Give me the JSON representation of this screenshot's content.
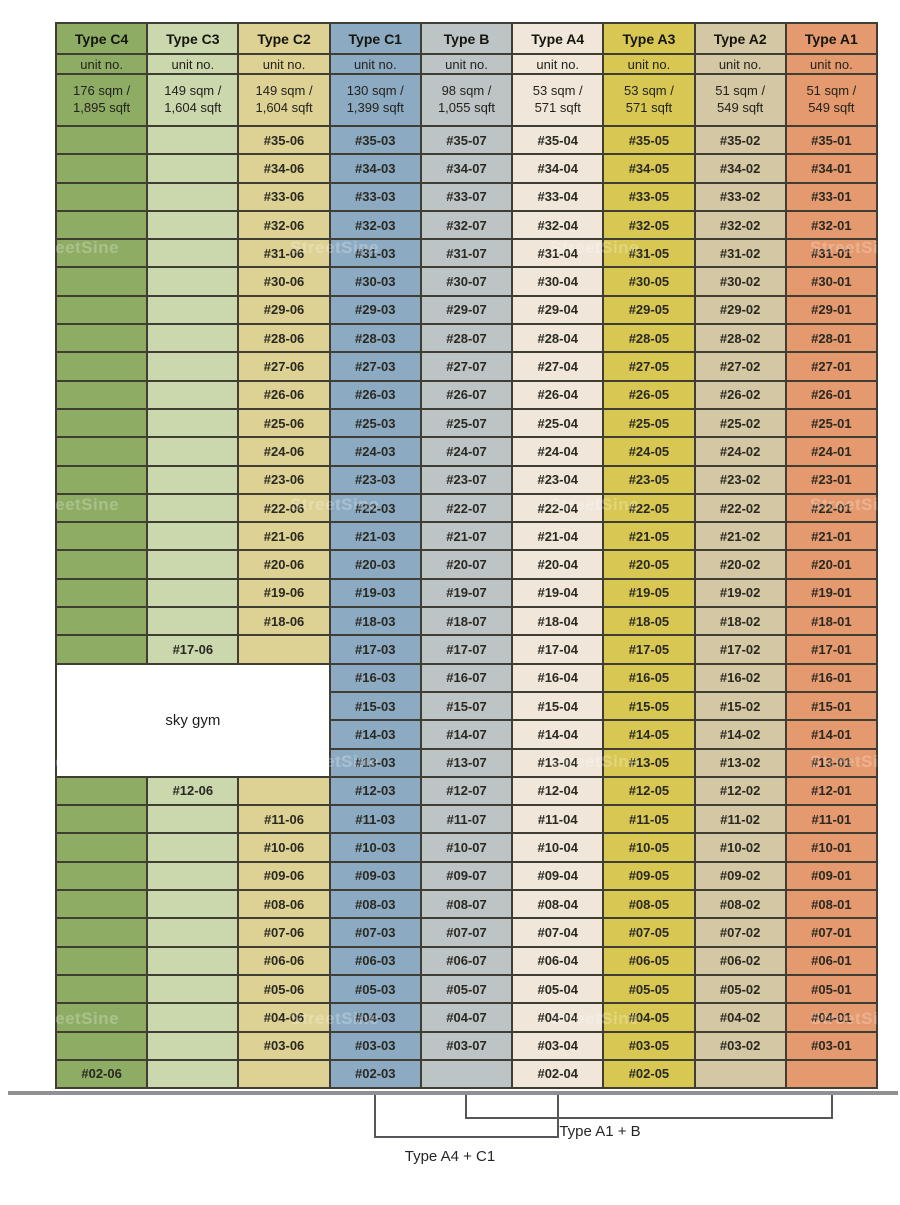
{
  "watermark": {
    "text": "StreetSine"
  },
  "sky_gym": {
    "label": "sky gym"
  },
  "annotations": [
    {
      "label": "Type A4 + C1"
    },
    {
      "label": "Type A1 + B"
    }
  ],
  "columns": [
    {
      "label": "Type C4",
      "unit_label": "unit no.",
      "area": "176 sqm /\n1,895 sqft",
      "color": "#8fac65"
    },
    {
      "label": "Type C3",
      "unit_label": "unit no.",
      "area": "149 sqm /\n1,604 sqft",
      "color": "#cbd7ac"
    },
    {
      "label": "Type C2",
      "unit_label": "unit no.",
      "area": "149 sqm /\n1,604 sqft",
      "color": "#ddd293"
    },
    {
      "label": "Type C1",
      "unit_label": "unit no.",
      "area": "130 sqm /\n1,399 sqft",
      "color": "#8cabc3"
    },
    {
      "label": "Type B",
      "unit_label": "unit no.",
      "area": "98 sqm /\n1,055 sqft",
      "color": "#bdc4c6"
    },
    {
      "label": "Type A4",
      "unit_label": "unit no.",
      "area": "53 sqm /\n571 sqft",
      "color": "#f0e7da"
    },
    {
      "label": "Type A3",
      "unit_label": "unit no.",
      "area": "53 sqm /\n571 sqft",
      "color": "#d8c752"
    },
    {
      "label": "Type A2",
      "unit_label": "unit no.",
      "area": "51 sqm /\n549 sqft",
      "color": "#d4c7a3"
    },
    {
      "label": "Type A1",
      "unit_label": "unit no.",
      "area": "51 sqm /\n549 sqft",
      "color": "#e5996e"
    }
  ],
  "rows": [
    {
      "floor": "35",
      "cells": [
        "",
        "",
        "#35-06",
        "#35-03",
        "#35-07",
        "#35-04",
        "#35-05",
        "#35-02",
        "#35-01"
      ]
    },
    {
      "floor": "34",
      "cells": [
        "",
        "",
        "#34-06",
        "#34-03",
        "#34-07",
        "#34-04",
        "#34-05",
        "#34-02",
        "#34-01"
      ]
    },
    {
      "floor": "33",
      "cells": [
        "",
        "",
        "#33-06",
        "#33-03",
        "#33-07",
        "#33-04",
        "#33-05",
        "#33-02",
        "#33-01"
      ]
    },
    {
      "floor": "32",
      "cells": [
        "",
        "",
        "#32-06",
        "#32-03",
        "#32-07",
        "#32-04",
        "#32-05",
        "#32-02",
        "#32-01"
      ]
    },
    {
      "floor": "31",
      "cells": [
        "",
        "",
        "#31-06",
        "#31-03",
        "#31-07",
        "#31-04",
        "#31-05",
        "#31-02",
        "#31-01"
      ]
    },
    {
      "floor": "30",
      "cells": [
        "",
        "",
        "#30-06",
        "#30-03",
        "#30-07",
        "#30-04",
        "#30-05",
        "#30-02",
        "#30-01"
      ]
    },
    {
      "floor": "29",
      "cells": [
        "",
        "",
        "#29-06",
        "#29-03",
        "#29-07",
        "#29-04",
        "#29-05",
        "#29-02",
        "#29-01"
      ]
    },
    {
      "floor": "28",
      "cells": [
        "",
        "",
        "#28-06",
        "#28-03",
        "#28-07",
        "#28-04",
        "#28-05",
        "#28-02",
        "#28-01"
      ]
    },
    {
      "floor": "27",
      "cells": [
        "",
        "",
        "#27-06",
        "#27-03",
        "#27-07",
        "#27-04",
        "#27-05",
        "#27-02",
        "#27-01"
      ]
    },
    {
      "floor": "26",
      "cells": [
        "",
        "",
        "#26-06",
        "#26-03",
        "#26-07",
        "#26-04",
        "#26-05",
        "#26-02",
        "#26-01"
      ]
    },
    {
      "floor": "25",
      "cells": [
        "",
        "",
        "#25-06",
        "#25-03",
        "#25-07",
        "#25-04",
        "#25-05",
        "#25-02",
        "#25-01"
      ]
    },
    {
      "floor": "24",
      "cells": [
        "",
        "",
        "#24-06",
        "#24-03",
        "#24-07",
        "#24-04",
        "#24-05",
        "#24-02",
        "#24-01"
      ]
    },
    {
      "floor": "23",
      "cells": [
        "",
        "",
        "#23-06",
        "#23-03",
        "#23-07",
        "#23-04",
        "#23-05",
        "#23-02",
        "#23-01"
      ]
    },
    {
      "floor": "22",
      "cells": [
        "",
        "",
        "#22-06",
        "#22-03",
        "#22-07",
        "#22-04",
        "#22-05",
        "#22-02",
        "#22-01"
      ]
    },
    {
      "floor": "21",
      "cells": [
        "",
        "",
        "#21-06",
        "#21-03",
        "#21-07",
        "#21-04",
        "#21-05",
        "#21-02",
        "#21-01"
      ]
    },
    {
      "floor": "20",
      "cells": [
        "",
        "",
        "#20-06",
        "#20-03",
        "#20-07",
        "#20-04",
        "#20-05",
        "#20-02",
        "#20-01"
      ]
    },
    {
      "floor": "19",
      "cells": [
        "",
        "",
        "#19-06",
        "#19-03",
        "#19-07",
        "#19-04",
        "#19-05",
        "#19-02",
        "#19-01"
      ]
    },
    {
      "floor": "18",
      "cells": [
        "",
        "",
        "#18-06",
        "#18-03",
        "#18-07",
        "#18-04",
        "#18-05",
        "#18-02",
        "#18-01"
      ]
    },
    {
      "floor": "17",
      "cells": [
        "",
        "#17-06",
        "",
        "#17-03",
        "#17-07",
        "#17-04",
        "#17-05",
        "#17-02",
        "#17-01"
      ]
    },
    {
      "floor": "16",
      "sky_gym_start": true,
      "cells": [
        "#16-03",
        "#16-07",
        "#16-04",
        "#16-05",
        "#16-02",
        "#16-01"
      ]
    },
    {
      "floor": "15",
      "cells": [
        "#15-03",
        "#15-07",
        "#15-04",
        "#15-05",
        "#15-02",
        "#15-01"
      ]
    },
    {
      "floor": "14",
      "cells": [
        "#14-03",
        "#14-07",
        "#14-04",
        "#14-05",
        "#14-02",
        "#14-01"
      ]
    },
    {
      "floor": "13",
      "cells": [
        "#13-03",
        "#13-07",
        "#13-04",
        "#13-05",
        "#13-02",
        "#13-01"
      ]
    },
    {
      "floor": "12",
      "cells": [
        "",
        "#12-06",
        "",
        "#12-03",
        "#12-07",
        "#12-04",
        "#12-05",
        "#12-02",
        "#12-01"
      ]
    },
    {
      "floor": "11",
      "cells": [
        "",
        "",
        "#11-06",
        "#11-03",
        "#11-07",
        "#11-04",
        "#11-05",
        "#11-02",
        "#11-01"
      ]
    },
    {
      "floor": "10",
      "cells": [
        "",
        "",
        "#10-06",
        "#10-03",
        "#10-07",
        "#10-04",
        "#10-05",
        "#10-02",
        "#10-01"
      ]
    },
    {
      "floor": "09",
      "cells": [
        "",
        "",
        "#09-06",
        "#09-03",
        "#09-07",
        "#09-04",
        "#09-05",
        "#09-02",
        "#09-01"
      ]
    },
    {
      "floor": "08",
      "cells": [
        "",
        "",
        "#08-06",
        "#08-03",
        "#08-07",
        "#08-04",
        "#08-05",
        "#08-02",
        "#08-01"
      ]
    },
    {
      "floor": "07",
      "cells": [
        "",
        "",
        "#07-06",
        "#07-03",
        "#07-07",
        "#07-04",
        "#07-05",
        "#07-02",
        "#07-01"
      ]
    },
    {
      "floor": "06",
      "cells": [
        "",
        "",
        "#06-06",
        "#06-03",
        "#06-07",
        "#06-04",
        "#06-05",
        "#06-02",
        "#06-01"
      ]
    },
    {
      "floor": "05",
      "cells": [
        "",
        "",
        "#05-06",
        "#05-03",
        "#05-07",
        "#05-04",
        "#05-05",
        "#05-02",
        "#05-01"
      ]
    },
    {
      "floor": "04",
      "cells": [
        "",
        "",
        "#04-06",
        "#04-03",
        "#04-07",
        "#04-04",
        "#04-05",
        "#04-02",
        "#04-01"
      ]
    },
    {
      "floor": "03",
      "cells": [
        "",
        "",
        "#03-06",
        "#03-03",
        "#03-07",
        "#03-04",
        "#03-05",
        "#03-02",
        "#03-01"
      ]
    },
    {
      "floor": "02",
      "cells": [
        "#02-06",
        "",
        "",
        "#02-03",
        "",
        "#02-04",
        "#02-05",
        "",
        ""
      ]
    }
  ]
}
